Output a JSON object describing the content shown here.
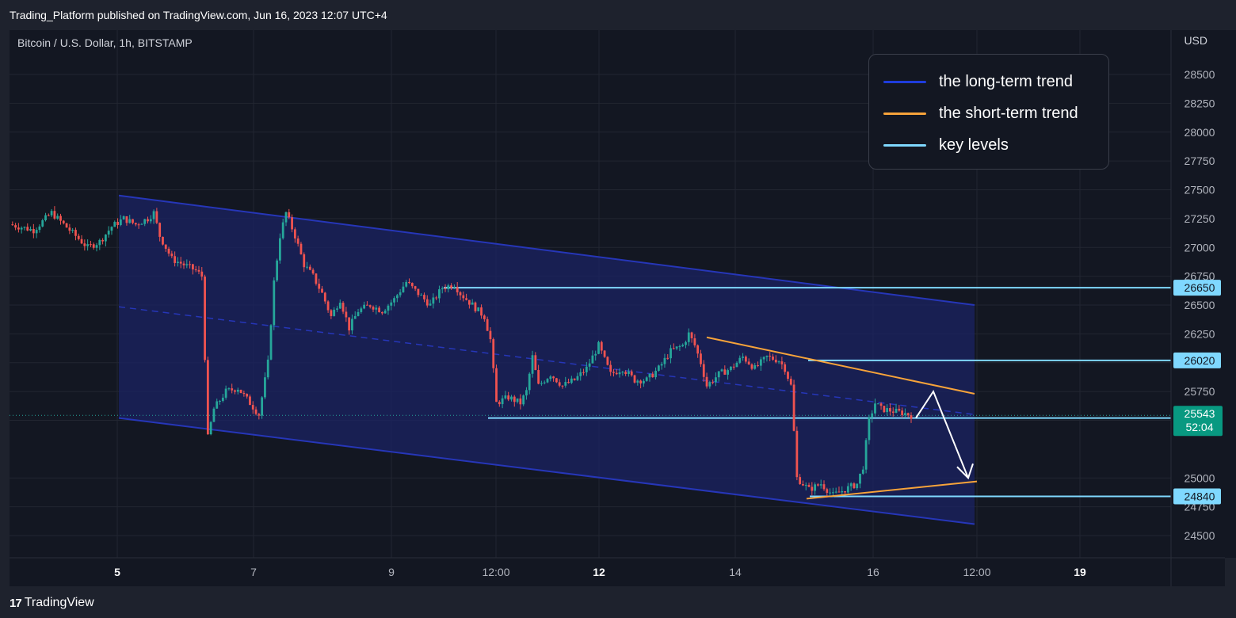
{
  "header": {
    "published": "Trading_Platform published on TradingView.com, Jun 16, 2023 12:07 UTC+4"
  },
  "chart": {
    "symbol": "Bitcoin / U.S. Dollar, 1h, BITSTAMP",
    "currency": "USD",
    "price_label": "25543",
    "countdown": "52:04"
  },
  "legend": {
    "items": [
      {
        "label": "the long-term trend",
        "color": "#1e3cdc"
      },
      {
        "label": "the short-term trend",
        "color": "#f7a33a"
      },
      {
        "label": "key levels",
        "color": "#7fd8ff"
      }
    ]
  },
  "footer": {
    "brand": "TradingView",
    "logo_mark": "17"
  },
  "colors": {
    "background": "#131722",
    "grid": "#222631",
    "up": "#26a69a",
    "down": "#ef5350",
    "channel_fill": "#1b2363",
    "channel_line": "#2636b8",
    "short_trend": "#f7a33a",
    "key_level": "#7fd8ff",
    "price_badge": "#089981"
  },
  "chart_data": {
    "type": "candlestick",
    "y_ticks": [
      28500,
      28250,
      28000,
      27750,
      27500,
      27250,
      27000,
      26750,
      26500,
      26250,
      26000,
      25750,
      25500,
      25000,
      24750,
      24500
    ],
    "ylim": [
      24300,
      28750
    ],
    "x_ticks": [
      {
        "label": "5",
        "bold": true
      },
      {
        "label": "7",
        "bold": false
      },
      {
        "label": "9",
        "bold": false
      },
      {
        "label": "12:00",
        "bold": false
      },
      {
        "label": "12",
        "bold": true
      },
      {
        "label": "14",
        "bold": false
      },
      {
        "label": "16",
        "bold": false
      },
      {
        "label": "12:00",
        "bold": false
      },
      {
        "label": "19",
        "bold": true
      }
    ],
    "key_levels": [
      26650,
      26020,
      25520,
      24840
    ],
    "current_price": 25543,
    "price_path": [
      [
        0,
        27200
      ],
      [
        8,
        27150
      ],
      [
        14,
        27300
      ],
      [
        18,
        27200
      ],
      [
        22,
        27100
      ],
      [
        26,
        27000
      ],
      [
        30,
        27050
      ],
      [
        34,
        27180
      ],
      [
        38,
        27250
      ],
      [
        42,
        27200
      ],
      [
        46,
        27250
      ],
      [
        48,
        27300
      ],
      [
        50,
        27100
      ],
      [
        54,
        26900
      ],
      [
        58,
        26850
      ],
      [
        62,
        26800
      ],
      [
        64,
        26750
      ],
      [
        66,
        25350
      ],
      [
        68,
        25600
      ],
      [
        72,
        25750
      ],
      [
        76,
        25780
      ],
      [
        80,
        25650
      ],
      [
        83,
        25550
      ],
      [
        86,
        26000
      ],
      [
        88,
        26700
      ],
      [
        90,
        27100
      ],
      [
        92,
        27300
      ],
      [
        95,
        27100
      ],
      [
        98,
        26850
      ],
      [
        101,
        26750
      ],
      [
        104,
        26600
      ],
      [
        107,
        26400
      ],
      [
        110,
        26550
      ],
      [
        113,
        26300
      ],
      [
        116,
        26450
      ],
      [
        120,
        26500
      ],
      [
        124,
        26450
      ],
      [
        128,
        26550
      ],
      [
        132,
        26700
      ],
      [
        136,
        26600
      ],
      [
        140,
        26500
      ],
      [
        144,
        26650
      ],
      [
        148,
        26680
      ],
      [
        150,
        26600
      ],
      [
        154,
        26500
      ],
      [
        158,
        26400
      ],
      [
        160,
        26200
      ],
      [
        162,
        25650
      ],
      [
        166,
        25700
      ],
      [
        170,
        25650
      ],
      [
        172,
        25750
      ],
      [
        174,
        26050
      ],
      [
        176,
        25800
      ],
      [
        180,
        25900
      ],
      [
        184,
        25800
      ],
      [
        188,
        25850
      ],
      [
        192,
        25950
      ],
      [
        196,
        26150
      ],
      [
        200,
        25900
      ],
      [
        204,
        25950
      ],
      [
        208,
        25850
      ],
      [
        212,
        25850
      ],
      [
        216,
        25950
      ],
      [
        220,
        26100
      ],
      [
        224,
        26150
      ],
      [
        226,
        26250
      ],
      [
        228,
        26150
      ],
      [
        230,
        26000
      ],
      [
        232,
        25800
      ],
      [
        236,
        25900
      ],
      [
        240,
        25950
      ],
      [
        244,
        26050
      ],
      [
        248,
        25950
      ],
      [
        252,
        26050
      ],
      [
        256,
        26020
      ],
      [
        258,
        25950
      ],
      [
        260,
        25800
      ],
      [
        262,
        25000
      ],
      [
        266,
        24900
      ],
      [
        270,
        24950
      ],
      [
        274,
        24850
      ],
      [
        278,
        24900
      ],
      [
        282,
        24950
      ],
      [
        284,
        25100
      ],
      [
        286,
        25500
      ],
      [
        288,
        25650
      ],
      [
        290,
        25600
      ],
      [
        294,
        25580
      ],
      [
        298,
        25560
      ],
      [
        300,
        25543
      ]
    ],
    "overlays": {
      "channel_upper": [
        [
          27450,
          0
        ],
        [
          26500,
          1
        ]
      ],
      "channel_lower": [
        [
          25520,
          0
        ],
        [
          24600,
          1
        ]
      ],
      "short_upper": [
        [
          26220,
          0
        ],
        [
          25730,
          1
        ]
      ],
      "short_lower": [
        [
          24820,
          0
        ],
        [
          24970,
          1
        ]
      ],
      "projection": [
        25520,
        25750,
        25000
      ]
    }
  }
}
